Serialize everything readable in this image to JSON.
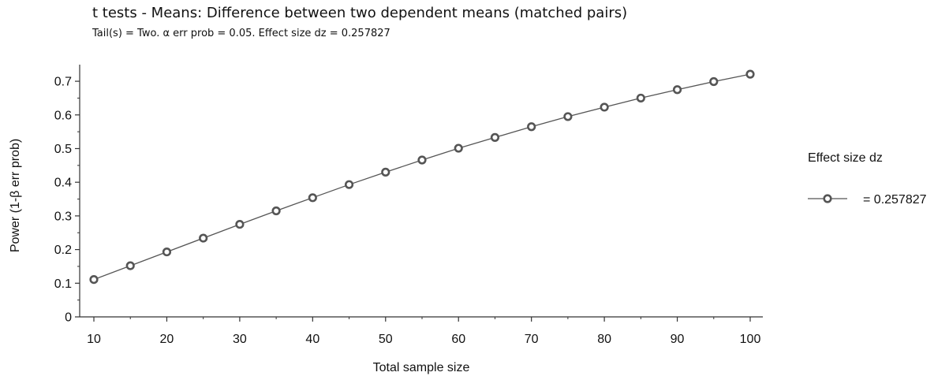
{
  "chart_data": {
    "type": "line",
    "title": "t tests - Means: Difference between two dependent means (matched pairs)",
    "subtitle": "Tail(s) = Two. α err prob = 0.05. Effect size dz = 0.257827",
    "xlabel": "Total sample size",
    "ylabel": "Power (1-β err prob)",
    "xlim": [
      10,
      100
    ],
    "ylim": [
      0,
      0.74
    ],
    "x_ticks": [
      10,
      20,
      30,
      40,
      50,
      60,
      70,
      80,
      90,
      100
    ],
    "y_ticks": [
      0,
      0.1,
      0.2,
      0.3,
      0.4,
      0.5,
      0.6,
      0.7
    ],
    "y_tick_labels": [
      "0",
      "0.1",
      "0.2",
      "0.3",
      "0.4",
      "0.5",
      "0.6",
      "0.7"
    ],
    "legend": {
      "title": "Effect size dz",
      "placement": "right"
    },
    "grid": false,
    "series": [
      {
        "name": "= 0.257827",
        "x": [
          10,
          15,
          20,
          25,
          30,
          35,
          40,
          45,
          50,
          55,
          60,
          65,
          70,
          75,
          80,
          85,
          90,
          95,
          100
        ],
        "values": [
          0.111,
          0.152,
          0.193,
          0.234,
          0.275,
          0.315,
          0.354,
          0.393,
          0.43,
          0.466,
          0.501,
          0.533,
          0.565,
          0.595,
          0.623,
          0.65,
          0.675,
          0.699,
          0.721
        ]
      }
    ],
    "colors": {
      "line": "#555555",
      "marker_stroke": "#555555",
      "marker_fill": "#ffffff"
    }
  }
}
